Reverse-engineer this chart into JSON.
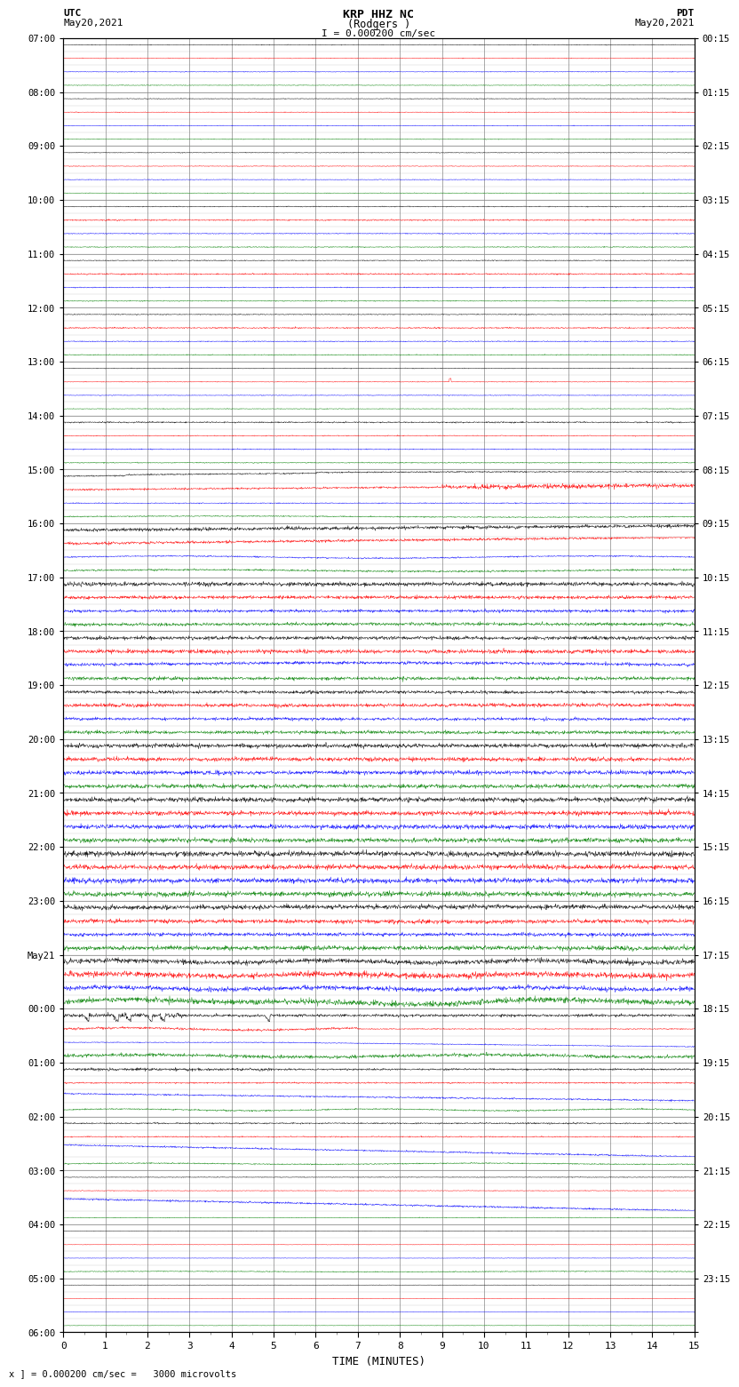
{
  "title_line1": "KRP HHZ NC",
  "title_line2": "(Rodgers )",
  "title_line3": "I = 0.000200 cm/sec",
  "label_left_top": "UTC",
  "label_left_date": "May20,2021",
  "label_right_top": "PDT",
  "label_right_date": "May20,2021",
  "scale_text": "x ] = 0.000200 cm/sec =   3000 microvolts",
  "xlabel": "TIME (MINUTES)",
  "utc_times_left": [
    "07:00",
    "08:00",
    "09:00",
    "10:00",
    "11:00",
    "12:00",
    "13:00",
    "14:00",
    "15:00",
    "16:00",
    "17:00",
    "18:00",
    "19:00",
    "20:00",
    "21:00",
    "22:00",
    "23:00",
    "May21",
    "00:00",
    "01:00",
    "02:00",
    "03:00",
    "04:00",
    "05:00",
    "06:00"
  ],
  "pdt_times_right": [
    "00:15",
    "01:15",
    "02:15",
    "03:15",
    "04:15",
    "05:15",
    "06:15",
    "07:15",
    "08:15",
    "09:15",
    "10:15",
    "11:15",
    "12:15",
    "13:15",
    "14:15",
    "15:15",
    "16:15",
    "17:15",
    "18:15",
    "19:15",
    "20:15",
    "21:15",
    "22:15",
    "23:15"
  ],
  "num_hours": 24,
  "subrows_per_hour": 4,
  "xmin": 0,
  "xmax": 15,
  "bg_color": "#ffffff",
  "grid_color": "#888888",
  "minor_grid_color": "#cccccc",
  "trace_colors": [
    "black",
    "red",
    "blue",
    "green"
  ],
  "figwidth": 8.5,
  "figheight": 16.13
}
